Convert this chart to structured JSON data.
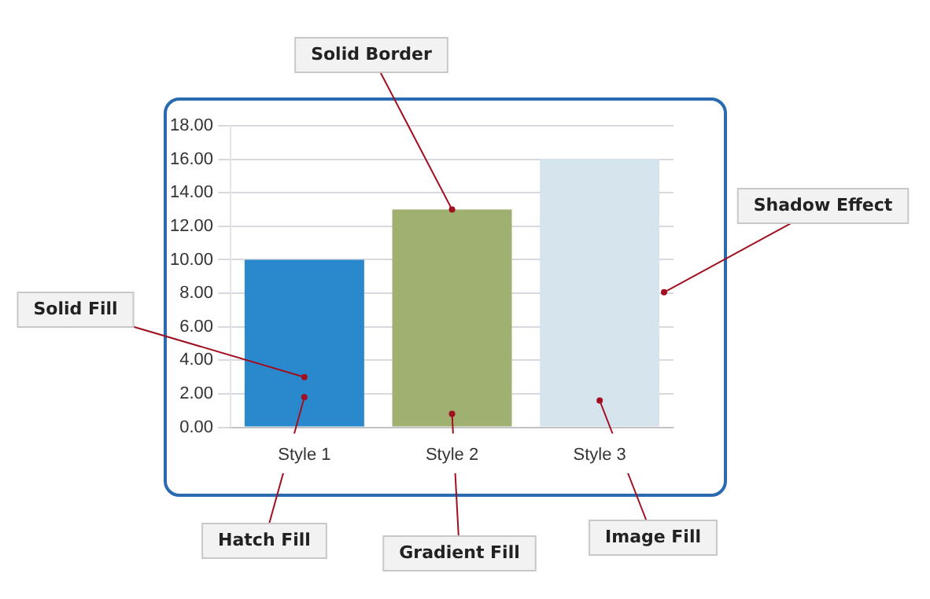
{
  "chart_data": {
    "type": "bar",
    "categories": [
      "Style 1",
      "Style 2",
      "Style 3"
    ],
    "values": [
      10,
      13,
      16
    ],
    "colors": [
      "#2a88cc",
      "#9fb070",
      "#d6e4ee"
    ],
    "ylim": [
      0,
      18
    ],
    "yticks": [
      {
        "value": 0,
        "label": "0.00"
      },
      {
        "value": 2,
        "label": "2.00"
      },
      {
        "value": 4,
        "label": "4.00"
      },
      {
        "value": 6,
        "label": "6.00"
      },
      {
        "value": 8,
        "label": "8.00"
      },
      {
        "value": 10,
        "label": "10.00"
      },
      {
        "value": 12,
        "label": "12.00"
      },
      {
        "value": 14,
        "label": "14.00"
      },
      {
        "value": 16,
        "label": "16.00"
      },
      {
        "value": 18,
        "label": "18.00"
      }
    ],
    "grid": "y",
    "legend": false,
    "annotations": [
      {
        "text": "Solid Border",
        "x": "Style 2",
        "y": 13
      },
      "Shadow Effect",
      {
        "text": "Solid Fill",
        "x": "Style 1",
        "y": 3
      },
      {
        "text": "Hatch Fill",
        "x": "Style 1",
        "y": 1.8
      },
      {
        "text": "Gradient Fill",
        "x": "Style 2",
        "y": 0.8
      },
      {
        "text": "Image Fill",
        "x": "Style 3",
        "y": 1.6
      }
    ]
  }
}
